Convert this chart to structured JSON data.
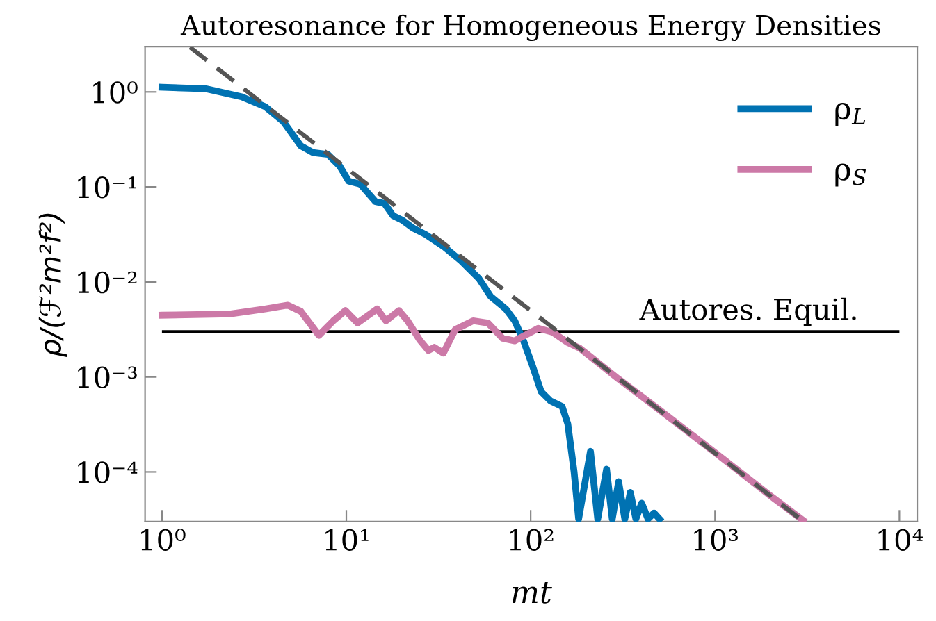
{
  "chart_data": {
    "type": "line",
    "title": "Autoresonance for Homogeneous Energy Densities",
    "xlabel": "mt",
    "ylabel": "ρ/(ℱ²m²f²)",
    "log": "xy",
    "xlim": [
      0.81,
      12500
    ],
    "ylim": [
      3e-05,
      3
    ],
    "xticks": [
      {
        "value": 1,
        "label": "10⁰"
      },
      {
        "value": 10,
        "label": "10¹"
      },
      {
        "value": 100,
        "label": "10²"
      },
      {
        "value": 1000,
        "label": "10³"
      },
      {
        "value": 10000,
        "label": "10⁴"
      }
    ],
    "yticks": [
      {
        "value": 0.0001,
        "label": "10⁻⁴"
      },
      {
        "value": 0.001,
        "label": "10⁻³"
      },
      {
        "value": 0.01,
        "label": "10⁻²"
      },
      {
        "value": 0.1,
        "label": "10⁻¹"
      },
      {
        "value": 1,
        "label": "10⁰"
      }
    ],
    "legend": "top right",
    "grid": false,
    "series": [
      {
        "name": "ρ$_{L}$",
        "color": "#0072b2",
        "x": [
          1,
          1.73,
          2.7,
          3.63,
          4.54,
          5.67,
          6.58,
          7.94,
          9.2,
          10.3,
          11.9,
          14.4,
          16.1,
          17.9,
          20,
          23.2,
          26.9,
          33.6,
          42,
          52.5,
          60.8,
          73.3,
          81.9,
          91.5,
          102,
          114,
          128,
          148,
          159,
          172,
          182,
          211,
          231,
          258,
          277,
          300,
          324,
          347,
          372,
          400,
          433,
          467,
          500
        ],
        "values": [
          1.12,
          1.08,
          0.89,
          0.7,
          0.49,
          0.27,
          0.23,
          0.22,
          0.166,
          0.115,
          0.107,
          0.07,
          0.067,
          0.05,
          0.045,
          0.0365,
          0.0316,
          0.0237,
          0.0166,
          0.0108,
          0.007,
          0.0052,
          0.0039,
          0.0024,
          0.00133,
          0.0007,
          0.00056,
          0.00049,
          0.00032,
          0.0001,
          3.2e-05,
          0.000165,
          3.2e-05,
          0.000107,
          3.2e-05,
          7.9e-05,
          3.2e-05,
          6.1e-05,
          3.2e-05,
          4.7e-05,
          3.2e-05,
          3.7e-05,
          3.2e-05
        ]
      },
      {
        "name": "ρ$_{S}$",
        "color": "#cc79a7",
        "x": [
          1,
          2.33,
          3.63,
          4.82,
          5.67,
          7.1,
          8.5,
          9.9,
          11.5,
          14.7,
          16.4,
          19.3,
          21.5,
          25,
          27.9,
          30,
          33.6,
          39,
          48.7,
          58.6,
          70.5,
          81.9,
          95,
          110,
          132,
          159,
          185,
          300,
          500,
          1000,
          2000,
          3000
        ],
        "values": [
          0.00447,
          0.0046,
          0.0052,
          0.0057,
          0.0049,
          0.00274,
          0.0039,
          0.005,
          0.0037,
          0.0052,
          0.0039,
          0.005,
          0.0039,
          0.00245,
          0.0019,
          0.00205,
          0.00178,
          0.00316,
          0.0039,
          0.0037,
          0.00255,
          0.0024,
          0.0028,
          0.00325,
          0.00295,
          0.0023,
          0.002,
          0.00095,
          0.00045,
          0.00016,
          5.6e-05,
          3.1e-05
        ]
      },
      {
        "color": "#555555",
        "line_style": "dashed",
        "x": [
          1.42,
          3000
        ],
        "values": [
          2.95,
          3.04e-05
        ]
      }
    ],
    "ref_lines": [
      {
        "axis": "y",
        "value": 0.003,
        "label": "Autores. Equil.",
        "color": "#000000"
      }
    ]
  }
}
